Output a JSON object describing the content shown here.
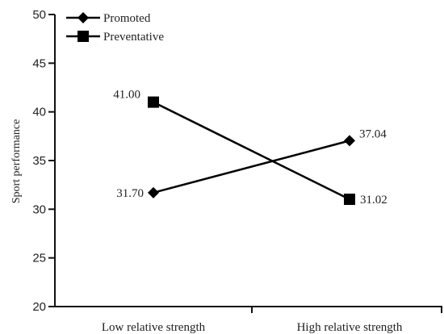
{
  "chart_data": {
    "type": "line",
    "categories": [
      "Low relative strength",
      "High relative strength"
    ],
    "series": [
      {
        "name": "Promoted",
        "values": [
          31.7,
          37.04
        ],
        "labels": [
          "31.70",
          "37.04"
        ],
        "marker": "diamond",
        "color": "#000000"
      },
      {
        "name": "Preventative",
        "values": [
          41.0,
          31.02
        ],
        "labels": [
          "41.00",
          "31.02"
        ],
        "marker": "square",
        "color": "#000000"
      }
    ],
    "title": "",
    "xlabel": "",
    "ylabel": "Sport performance",
    "ylim": [
      20,
      50
    ],
    "yticks": [
      20,
      25,
      30,
      35,
      40,
      45,
      50
    ],
    "grid": false,
    "legend": "top-left"
  }
}
